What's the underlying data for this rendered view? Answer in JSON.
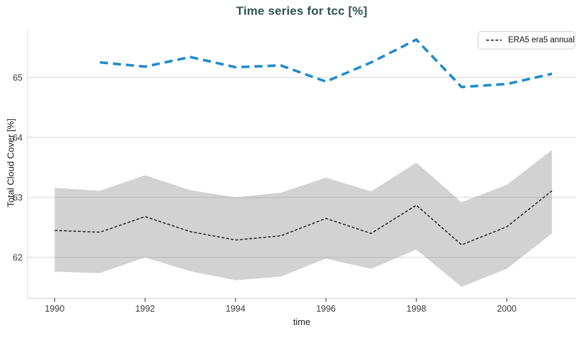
{
  "chart": {
    "accent_color": "#2f5450"
  },
  "chart_data": {
    "type": "line",
    "title": "Time series for tcc [%]",
    "xlabel": "time",
    "ylabel": "Total Cloud Cover [%]",
    "xlim": [
      1989.4,
      2001.53
    ],
    "ylim": [
      61.32,
      65.82
    ],
    "x_ticks": [
      1990,
      1992,
      1994,
      1996,
      1998,
      2000
    ],
    "y_ticks": [
      62,
      63,
      64,
      65
    ],
    "grid": true,
    "legend_position": "top-right",
    "legend_entries": [
      "ERA5 era5 annual"
    ],
    "series": [
      {
        "legend_label": "ERA5 era5 annual",
        "data_name": "black-dashed-line",
        "color": "#161616",
        "width": 1.4,
        "dash": "4 2.6",
        "x": [
          1990,
          1991,
          1992,
          1993,
          1994,
          1995,
          1996,
          1997,
          1998,
          1999,
          2000,
          2001
        ],
        "y": [
          62.45,
          62.42,
          62.68,
          62.43,
          62.29,
          62.36,
          62.65,
          62.4,
          62.87,
          62.21,
          62.51,
          63.11
        ]
      },
      {
        "legend_label": "",
        "data_name": "blue-dashed-line",
        "color": "#1f8bcd",
        "width": 3.6,
        "dash": "11.5 7",
        "x": [
          1991,
          1992,
          1993,
          1994,
          1995,
          1996,
          1997,
          1998,
          1999,
          2000,
          2001
        ],
        "y": [
          65.25,
          65.18,
          65.34,
          65.17,
          65.2,
          64.93,
          65.25,
          65.63,
          64.84,
          64.89,
          65.06
        ]
      }
    ],
    "band": {
      "data_name": "uncertainty-band",
      "color": "#d2d2d2",
      "x": [
        1990,
        1991,
        1992,
        1993,
        1994,
        1995,
        1996,
        1997,
        1998,
        1999,
        2000,
        2001
      ],
      "upper": [
        63.16,
        63.11,
        63.37,
        63.12,
        63.0,
        63.08,
        63.33,
        63.1,
        63.58,
        62.92,
        63.21,
        63.79
      ],
      "lower": [
        61.76,
        61.74,
        62.0,
        61.77,
        61.62,
        61.68,
        61.98,
        61.81,
        62.13,
        61.51,
        61.81,
        62.4
      ]
    }
  }
}
